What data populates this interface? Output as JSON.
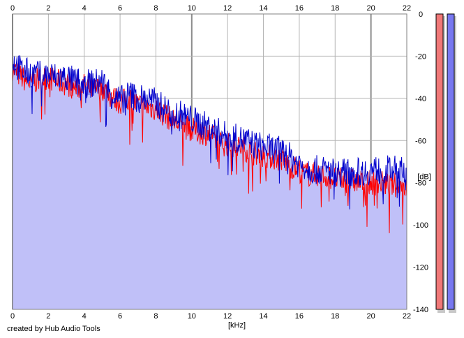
{
  "credit": "created by Hub Audio Tools",
  "colors": {
    "background": "#ffffff",
    "plot_bg": "#ffffff",
    "fill": "#c0c0f8",
    "grid": "#b4b4b4",
    "grid_major": "#8c8c8c",
    "red": "#ff0000",
    "blue": "#0000cc",
    "meter_left": "#f07878",
    "meter_right": "#7878f0"
  },
  "chart_data": {
    "type": "line",
    "title": "",
    "xlabel": "[kHz]",
    "ylabel": "[dB]",
    "xlim": [
      0,
      22
    ],
    "ylim": [
      -140,
      0
    ],
    "x_ticks": [
      0,
      2,
      4,
      6,
      8,
      10,
      12,
      14,
      16,
      18,
      20,
      22
    ],
    "y_ticks": [
      0,
      -20,
      -40,
      -60,
      -80,
      -100,
      -120,
      -140
    ],
    "grid": true,
    "legend": "none",
    "series": [
      {
        "color": "red",
        "x": [
          0,
          0.5,
          1,
          1.5,
          2,
          2.5,
          3,
          3.5,
          4,
          4.5,
          5,
          5.5,
          6,
          6.5,
          7,
          7.5,
          8,
          8.5,
          9,
          9.5,
          10,
          10.5,
          11,
          11.5,
          12,
          12.5,
          13,
          13.5,
          14,
          14.5,
          15,
          15.5,
          16,
          16.5,
          17,
          17.5,
          18,
          18.5,
          19,
          19.5,
          20,
          20.5,
          21,
          21.5,
          22
        ],
        "y": [
          -26,
          -30,
          -33,
          -31,
          -30,
          -32,
          -33,
          -35,
          -34,
          -36,
          -35,
          -39,
          -42,
          -40,
          -43,
          -44,
          -45,
          -48,
          -51,
          -53,
          -55,
          -56,
          -57,
          -61,
          -62,
          -63,
          -64,
          -66,
          -67,
          -68,
          -69,
          -72,
          -74,
          -76,
          -76,
          -77,
          -78,
          -79,
          -79,
          -80,
          -80,
          -80,
          -81,
          -81,
          -82
        ]
      },
      {
        "color": "blue",
        "x": [
          0,
          0.5,
          1,
          1.5,
          2,
          2.5,
          3,
          3.5,
          4,
          4.5,
          5,
          5.5,
          6,
          6.5,
          7,
          7.5,
          8,
          8.5,
          9,
          9.5,
          10,
          10.5,
          11,
          11.5,
          12,
          12.5,
          13,
          13.5,
          14,
          14.5,
          15,
          15.5,
          16,
          16.5,
          17,
          17.5,
          18,
          18.5,
          19,
          19.5,
          20,
          20.5,
          21,
          21.5,
          22
        ],
        "y": [
          -22,
          -27,
          -28,
          -29,
          -29,
          -30,
          -30,
          -32,
          -33,
          -33,
          -32,
          -38,
          -41,
          -38,
          -40,
          -40,
          -42,
          -45,
          -47,
          -48,
          -50,
          -52,
          -54,
          -56,
          -58,
          -59,
          -60,
          -62,
          -63,
          -64,
          -65,
          -68,
          -71,
          -73,
          -74,
          -74,
          -75,
          -75,
          -75,
          -75,
          -74,
          -74,
          -74,
          -74,
          -75
        ]
      }
    ]
  }
}
